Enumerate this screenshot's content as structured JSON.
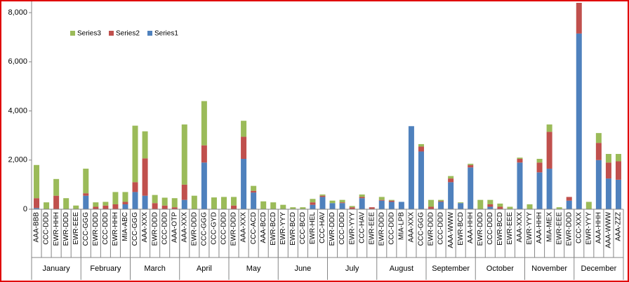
{
  "chart_data": {
    "type": "stacked_bar",
    "groups": [
      {
        "label": "January",
        "categories": [
          "AAA-BBB",
          "CCC-DDD",
          "EWR-HHH",
          "EWR-DDD",
          "EWR-EEE"
        ]
      },
      {
        "label": "February",
        "categories": [
          "CCC-GGG",
          "EWR-DDD",
          "CCC-DDD",
          "EWR-HHH",
          "MIA-ABC"
        ]
      },
      {
        "label": "March",
        "categories": [
          "CCC-GGG",
          "AAA-XXX",
          "EWR-DDD",
          "CCC-DDD",
          "AAA-OTP"
        ]
      },
      {
        "label": "April",
        "categories": [
          "AAA-XXX",
          "EWR-DDD",
          "CCC-GGG",
          "CCC-GYD",
          "CCC-DDD"
        ]
      },
      {
        "label": "May",
        "categories": [
          "EWR-DDD",
          "AAA-XXX",
          "CCC-ACD",
          "AAA-BCD",
          "EWR-BCD"
        ]
      },
      {
        "label": "June",
        "categories": [
          "EWR-YYY",
          "EWR-BCD",
          "CCC-BCD",
          "EWR-HEL",
          "CCC-HAV"
        ]
      },
      {
        "label": "July",
        "categories": [
          "EWR-DDD",
          "CCC-DDD",
          "EWR-YYY",
          "CCC-HAV",
          "EWR-EEE"
        ]
      },
      {
        "label": "August",
        "categories": [
          "EWR-DDD",
          "CCC-DDD",
          "MIA-LPB",
          "AAA-XXX",
          "CCC-GGG"
        ]
      },
      {
        "label": "September",
        "categories": [
          "EWR-DDD",
          "CCC-DDD",
          "AAA-WWW",
          "EWR-BCD",
          "AAA-HHH"
        ]
      },
      {
        "label": "October",
        "categories": [
          "EWR-DDD",
          "CCC-DDD",
          "EWR-BCD",
          "EWR-EEE",
          "AAA-XXX"
        ]
      },
      {
        "label": "November",
        "categories": [
          "EWR-YYY",
          "AAA-HHH",
          "MIA-MEX",
          "EWR-EEE",
          "EWR-DDD"
        ]
      },
      {
        "label": "December",
        "categories": [
          "CCC-XXX",
          "EWR-YYY",
          "AAA-HHH",
          "AAA-WWW",
          "AAA-ZZZ"
        ]
      }
    ],
    "series": [
      {
        "name": "Series1",
        "color": "#4f81bd",
        "values": [
          50,
          0,
          0,
          0,
          0,
          550,
          0,
          0,
          0,
          200,
          700,
          550,
          0,
          0,
          0,
          380,
          0,
          1900,
          0,
          0,
          0,
          2050,
          680,
          0,
          0,
          0,
          0,
          0,
          180,
          500,
          250,
          250,
          0,
          450,
          0,
          350,
          300,
          300,
          3380,
          2350,
          0,
          300,
          1100,
          250,
          1700,
          0,
          100,
          0,
          0,
          1900,
          0,
          1500,
          1650,
          0,
          350,
          7150,
          0,
          2000,
          1250,
          1200
        ]
      },
      {
        "name": "Series2",
        "color": "#c0504d",
        "values": [
          400,
          0,
          550,
          0,
          0,
          100,
          100,
          150,
          200,
          100,
          400,
          1520,
          250,
          150,
          80,
          620,
          0,
          700,
          0,
          0,
          150,
          900,
          70,
          0,
          0,
          0,
          0,
          0,
          100,
          50,
          0,
          30,
          80,
          50,
          80,
          30,
          50,
          0,
          0,
          200,
          100,
          30,
          150,
          0,
          100,
          0,
          100,
          100,
          0,
          150,
          0,
          400,
          1500,
          0,
          150,
          1250,
          0,
          700,
          650,
          750
        ]
      },
      {
        "name": "Series3",
        "color": "#9bbb59",
        "values": [
          1350,
          280,
          680,
          450,
          150,
          1000,
          180,
          150,
          500,
          400,
          2300,
          1100,
          330,
          320,
          370,
          2450,
          550,
          1800,
          480,
          500,
          350,
          650,
          200,
          320,
          280,
          180,
          80,
          80,
          140,
          50,
          100,
          100,
          50,
          100,
          0,
          120,
          30,
          0,
          0,
          100,
          280,
          50,
          100,
          30,
          50,
          380,
          180,
          130,
          100,
          50,
          200,
          150,
          300,
          80,
          0,
          0,
          300,
          400,
          350,
          300
        ]
      }
    ],
    "ylim": [
      0,
      8400
    ],
    "yticks": [
      0,
      {
        "value": 2000,
        "label": "2,000"
      },
      {
        "value": 4000,
        "label": "4,000"
      },
      {
        "value": 6000,
        "label": "6,000"
      },
      {
        "value": 8000,
        "label": "8,000"
      }
    ],
    "legend": "top-left"
  }
}
